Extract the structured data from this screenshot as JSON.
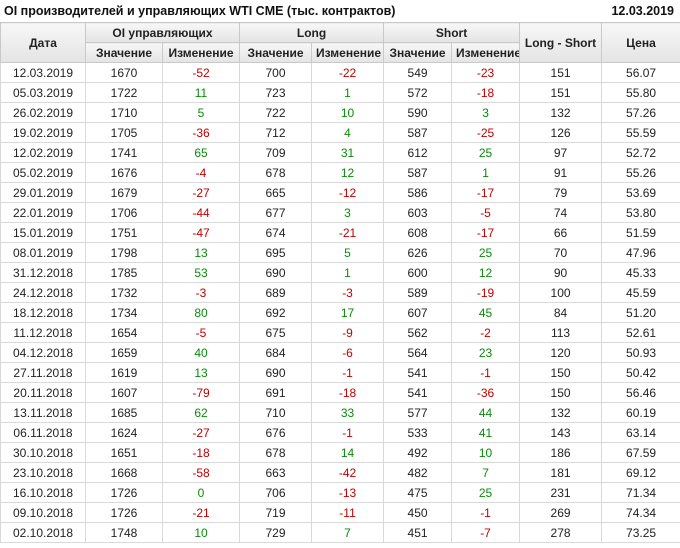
{
  "header": {
    "title": "OI производителей и управляющих WTI CME (тыс. контрактов)",
    "date": "12.03.2019"
  },
  "table": {
    "group_headers": {
      "date": "Дата",
      "oi": "OI управляющих",
      "long": "Long",
      "short": "Short",
      "long_short": "Long - Short",
      "price": "Цена"
    },
    "sub_headers": {
      "value": "Значение",
      "change": "Изменение"
    },
    "rows": [
      {
        "date": "12.03.2019",
        "oi_value": 1670,
        "oi_change": -52,
        "long_value": 700,
        "long_change": -22,
        "short_value": 549,
        "short_change": -23,
        "long_short": 151,
        "price": "56.07"
      },
      {
        "date": "05.03.2019",
        "oi_value": 1722,
        "oi_change": 11,
        "long_value": 723,
        "long_change": 1,
        "short_value": 572,
        "short_change": -18,
        "long_short": 151,
        "price": "55.80"
      },
      {
        "date": "26.02.2019",
        "oi_value": 1710,
        "oi_change": 5,
        "long_value": 722,
        "long_change": 10,
        "short_value": 590,
        "short_change": 3,
        "long_short": 132,
        "price": "57.26"
      },
      {
        "date": "19.02.2019",
        "oi_value": 1705,
        "oi_change": -36,
        "long_value": 712,
        "long_change": 4,
        "short_value": 587,
        "short_change": -25,
        "long_short": 126,
        "price": "55.59"
      },
      {
        "date": "12.02.2019",
        "oi_value": 1741,
        "oi_change": 65,
        "long_value": 709,
        "long_change": 31,
        "short_value": 612,
        "short_change": 25,
        "long_short": 97,
        "price": "52.72"
      },
      {
        "date": "05.02.2019",
        "oi_value": 1676,
        "oi_change": -4,
        "long_value": 678,
        "long_change": 12,
        "short_value": 587,
        "short_change": 1,
        "long_short": 91,
        "price": "55.26"
      },
      {
        "date": "29.01.2019",
        "oi_value": 1679,
        "oi_change": -27,
        "long_value": 665,
        "long_change": -12,
        "short_value": 586,
        "short_change": -17,
        "long_short": 79,
        "price": "53.69"
      },
      {
        "date": "22.01.2019",
        "oi_value": 1706,
        "oi_change": -44,
        "long_value": 677,
        "long_change": 3,
        "short_value": 603,
        "short_change": -5,
        "long_short": 74,
        "price": "53.80"
      },
      {
        "date": "15.01.2019",
        "oi_value": 1751,
        "oi_change": -47,
        "long_value": 674,
        "long_change": -21,
        "short_value": 608,
        "short_change": -17,
        "long_short": 66,
        "price": "51.59"
      },
      {
        "date": "08.01.2019",
        "oi_value": 1798,
        "oi_change": 13,
        "long_value": 695,
        "long_change": 5,
        "short_value": 626,
        "short_change": 25,
        "long_short": 70,
        "price": "47.96"
      },
      {
        "date": "31.12.2018",
        "oi_value": 1785,
        "oi_change": 53,
        "long_value": 690,
        "long_change": 1,
        "short_value": 600,
        "short_change": 12,
        "long_short": 90,
        "price": "45.33"
      },
      {
        "date": "24.12.2018",
        "oi_value": 1732,
        "oi_change": -3,
        "long_value": 689,
        "long_change": -3,
        "short_value": 589,
        "short_change": -19,
        "long_short": 100,
        "price": "45.59"
      },
      {
        "date": "18.12.2018",
        "oi_value": 1734,
        "oi_change": 80,
        "long_value": 692,
        "long_change": 17,
        "short_value": 607,
        "short_change": 45,
        "long_short": 84,
        "price": "51.20"
      },
      {
        "date": "11.12.2018",
        "oi_value": 1654,
        "oi_change": -5,
        "long_value": 675,
        "long_change": -9,
        "short_value": 562,
        "short_change": -2,
        "long_short": 113,
        "price": "52.61"
      },
      {
        "date": "04.12.2018",
        "oi_value": 1659,
        "oi_change": 40,
        "long_value": 684,
        "long_change": -6,
        "short_value": 564,
        "short_change": 23,
        "long_short": 120,
        "price": "50.93"
      },
      {
        "date": "27.11.2018",
        "oi_value": 1619,
        "oi_change": 13,
        "long_value": 690,
        "long_change": -1,
        "short_value": 541,
        "short_change": -1,
        "long_short": 150,
        "price": "50.42"
      },
      {
        "date": "20.11.2018",
        "oi_value": 1607,
        "oi_change": -79,
        "long_value": 691,
        "long_change": -18,
        "short_value": 541,
        "short_change": -36,
        "long_short": 150,
        "price": "56.46"
      },
      {
        "date": "13.11.2018",
        "oi_value": 1685,
        "oi_change": 62,
        "long_value": 710,
        "long_change": 33,
        "short_value": 577,
        "short_change": 44,
        "long_short": 132,
        "price": "60.19"
      },
      {
        "date": "06.11.2018",
        "oi_value": 1624,
        "oi_change": -27,
        "long_value": 676,
        "long_change": -1,
        "short_value": 533,
        "short_change": 41,
        "long_short": 143,
        "price": "63.14"
      },
      {
        "date": "30.10.2018",
        "oi_value": 1651,
        "oi_change": -18,
        "long_value": 678,
        "long_change": 14,
        "short_value": 492,
        "short_change": 10,
        "long_short": 186,
        "price": "67.59"
      },
      {
        "date": "23.10.2018",
        "oi_value": 1668,
        "oi_change": -58,
        "long_value": 663,
        "long_change": -42,
        "short_value": 482,
        "short_change": 7,
        "long_short": 181,
        "price": "69.12"
      },
      {
        "date": "16.10.2018",
        "oi_value": 1726,
        "oi_change": 0,
        "long_value": 706,
        "long_change": -13,
        "short_value": 475,
        "short_change": 25,
        "long_short": 231,
        "price": "71.34"
      },
      {
        "date": "09.10.2018",
        "oi_value": 1726,
        "oi_change": -21,
        "long_value": 719,
        "long_change": -11,
        "short_value": 450,
        "short_change": -1,
        "long_short": 269,
        "price": "74.34"
      },
      {
        "date": "02.10.2018",
        "oi_value": 1748,
        "oi_change": 10,
        "long_value": 729,
        "long_change": 7,
        "short_value": 451,
        "short_change": -7,
        "long_short": 278,
        "price": "73.25"
      }
    ]
  }
}
